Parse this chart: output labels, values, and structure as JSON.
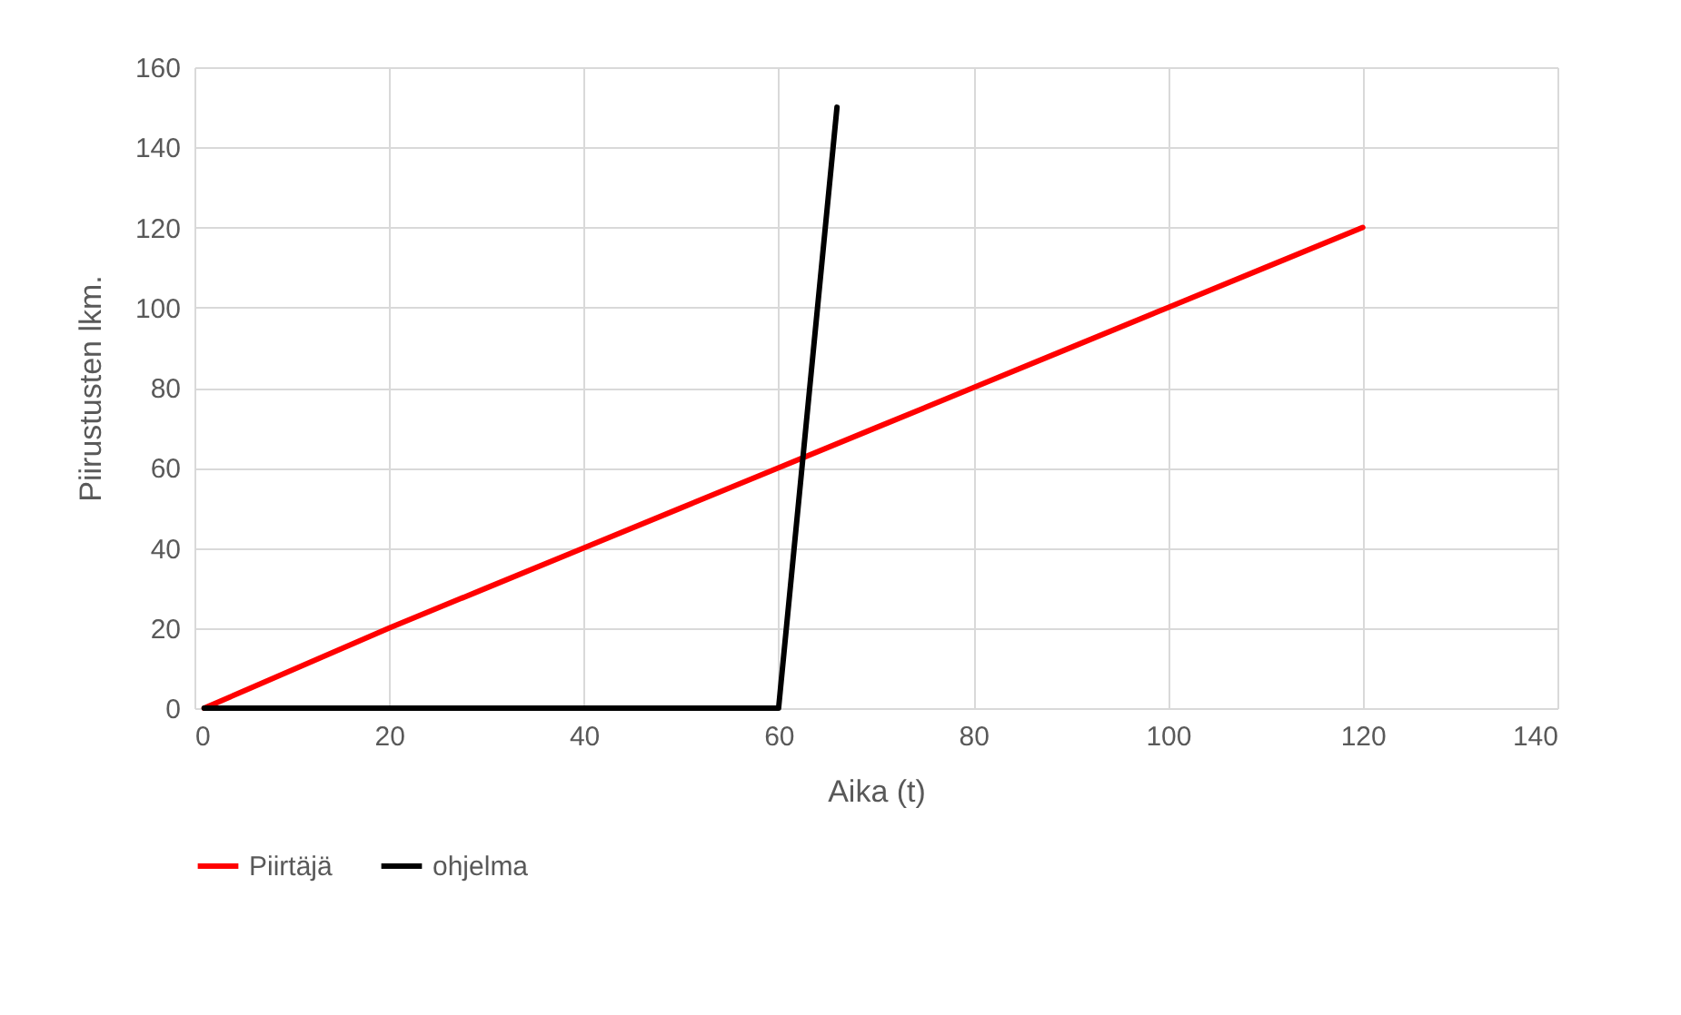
{
  "chart_data": {
    "type": "line",
    "xlabel": "Aika (t)",
    "ylabel": "Piirustusten lkm.",
    "xlim": [
      0,
      140
    ],
    "xticks": [
      0,
      20,
      40,
      60,
      80,
      100,
      120,
      140
    ],
    "ylim": [
      0,
      160
    ],
    "yticks": [
      0,
      20,
      40,
      60,
      80,
      100,
      120,
      140,
      160
    ],
    "grid": true,
    "legend": "bottom",
    "marker": "none",
    "line_style": "solid",
    "series": [
      {
        "name": "Piirtäjä",
        "color": "#ff0000",
        "x": [
          1,
          20,
          30,
          40,
          50,
          60,
          70,
          80,
          90,
          100,
          110,
          120
        ],
        "values": [
          0,
          20,
          30,
          40,
          50,
          60,
          70,
          80,
          90,
          100,
          110,
          120
        ]
      },
      {
        "name": "ohjelma",
        "color": "#000000",
        "x": [
          1,
          60,
          65,
          66
        ],
        "values": [
          0,
          0,
          125,
          150
        ]
      }
    ]
  }
}
